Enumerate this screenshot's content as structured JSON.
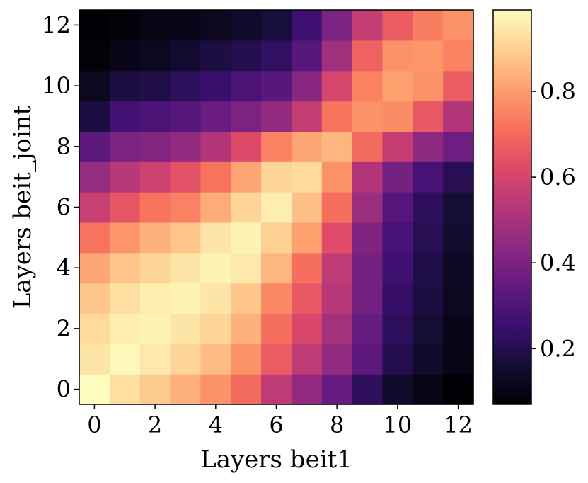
{
  "chart_data": {
    "type": "heatmap",
    "title": "",
    "xlabel": "Layers beit1",
    "ylabel": "Layers beit_joint",
    "x": [
      0,
      1,
      2,
      3,
      4,
      5,
      6,
      7,
      8,
      9,
      10,
      11,
      12
    ],
    "y": [
      0,
      1,
      2,
      3,
      4,
      5,
      6,
      7,
      8,
      9,
      10,
      11,
      12
    ],
    "x_ticks": [
      "0",
      "2",
      "4",
      "6",
      "8",
      "10",
      "12"
    ],
    "y_ticks": [
      "0",
      "2",
      "4",
      "6",
      "8",
      "10",
      "12"
    ],
    "colormap": "magma",
    "colorbar_range": [
      0.07,
      0.99
    ],
    "colorbar_ticks": [
      "0.2",
      "0.4",
      "0.6",
      "0.8"
    ],
    "colorbar_tick_values": [
      0.2,
      0.4,
      0.6,
      0.8
    ],
    "values": [
      [
        0.99,
        0.93,
        0.89,
        0.84,
        0.78,
        0.7,
        0.55,
        0.45,
        0.35,
        0.22,
        0.14,
        0.1,
        0.07
      ],
      [
        0.94,
        0.98,
        0.95,
        0.91,
        0.86,
        0.78,
        0.67,
        0.55,
        0.45,
        0.33,
        0.2,
        0.14,
        0.1
      ],
      [
        0.92,
        0.96,
        0.97,
        0.94,
        0.91,
        0.84,
        0.71,
        0.61,
        0.49,
        0.35,
        0.22,
        0.16,
        0.11
      ],
      [
        0.88,
        0.93,
        0.96,
        0.97,
        0.94,
        0.88,
        0.76,
        0.66,
        0.53,
        0.38,
        0.24,
        0.18,
        0.12
      ],
      [
        0.82,
        0.88,
        0.91,
        0.94,
        0.97,
        0.95,
        0.85,
        0.71,
        0.55,
        0.38,
        0.26,
        0.19,
        0.13
      ],
      [
        0.72,
        0.79,
        0.84,
        0.88,
        0.94,
        0.97,
        0.9,
        0.81,
        0.63,
        0.41,
        0.28,
        0.21,
        0.15
      ],
      [
        0.57,
        0.65,
        0.72,
        0.75,
        0.83,
        0.91,
        0.96,
        0.87,
        0.71,
        0.47,
        0.31,
        0.22,
        0.16
      ],
      [
        0.46,
        0.53,
        0.58,
        0.64,
        0.72,
        0.82,
        0.91,
        0.92,
        0.78,
        0.52,
        0.38,
        0.28,
        0.21
      ],
      [
        0.33,
        0.4,
        0.42,
        0.45,
        0.52,
        0.62,
        0.75,
        0.82,
        0.85,
        0.7,
        0.56,
        0.44,
        0.37
      ],
      [
        0.18,
        0.27,
        0.29,
        0.31,
        0.36,
        0.4,
        0.45,
        0.56,
        0.72,
        0.78,
        0.77,
        0.66,
        0.52
      ],
      [
        0.12,
        0.18,
        0.19,
        0.22,
        0.25,
        0.29,
        0.32,
        0.43,
        0.6,
        0.75,
        0.81,
        0.78,
        0.67
      ],
      [
        0.08,
        0.11,
        0.12,
        0.15,
        0.18,
        0.2,
        0.23,
        0.32,
        0.48,
        0.68,
        0.78,
        0.79,
        0.75
      ],
      [
        0.05,
        0.08,
        0.1,
        0.11,
        0.12,
        0.14,
        0.17,
        0.26,
        0.4,
        0.56,
        0.67,
        0.74,
        0.78
      ]
    ]
  }
}
